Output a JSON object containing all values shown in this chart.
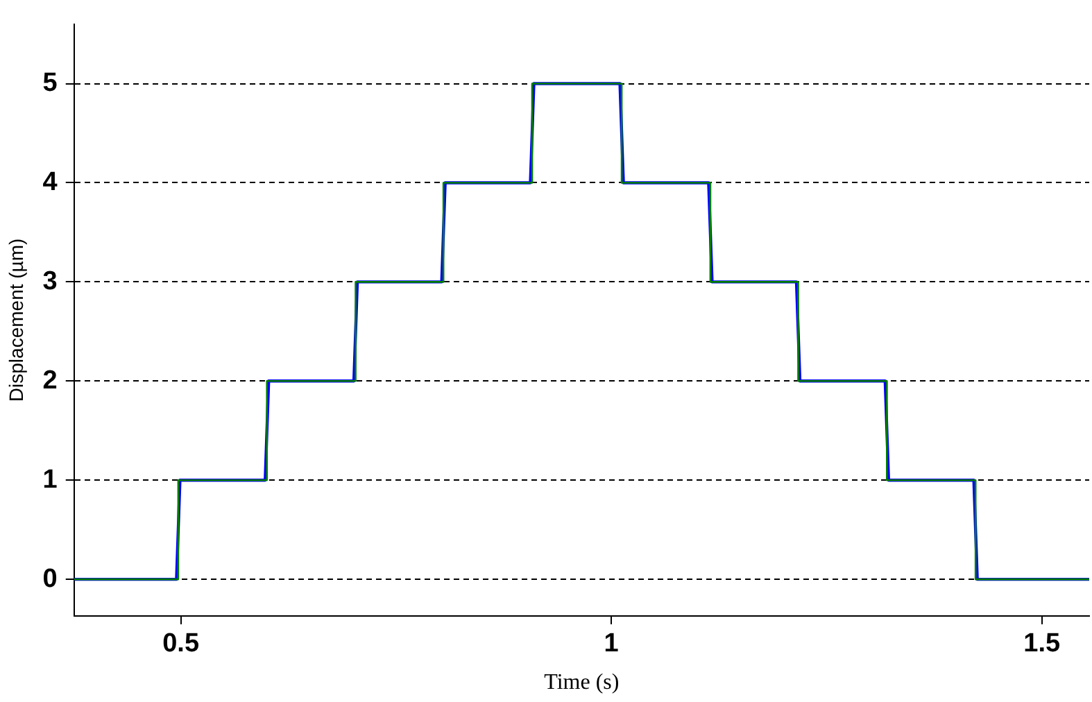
{
  "chart_data": {
    "type": "step",
    "xlabel": "Time (s)",
    "ylabel": "Displacement (µm)",
    "xlim": [
      0.376,
      1.555
    ],
    "xticks": [
      0.5,
      1,
      1.5
    ],
    "ylim": [
      -0.37,
      5.6
    ],
    "yticks": [
      0,
      1,
      2,
      3,
      4,
      5
    ],
    "grid": "y",
    "legend": false,
    "line_style": "solid",
    "marker": "none",
    "series": [
      {
        "type": "line",
        "color": "#0000ff",
        "x": [
          0.376,
          0.495,
          0.499,
          0.598,
          0.602,
          0.701,
          0.705,
          0.803,
          0.807,
          0.906,
          0.91,
          1.01,
          1.014,
          1.113,
          1.117,
          1.215,
          1.219,
          1.318,
          1.322,
          1.421,
          1.425,
          1.555
        ],
        "values": [
          0,
          0,
          1,
          1,
          2,
          2,
          3,
          3,
          4,
          4,
          5,
          5,
          4,
          4,
          3,
          3,
          2,
          2,
          1,
          1,
          0,
          0
        ]
      },
      {
        "color": "#008000",
        "x": [
          0.376,
          0.497,
          0.6,
          0.703,
          0.805,
          0.908,
          1.012,
          1.115,
          1.217,
          1.32,
          1.423,
          1.555
        ],
        "values": [
          0,
          1,
          2,
          3,
          4,
          5,
          4,
          3,
          2,
          1,
          0,
          0
        ]
      }
    ]
  }
}
